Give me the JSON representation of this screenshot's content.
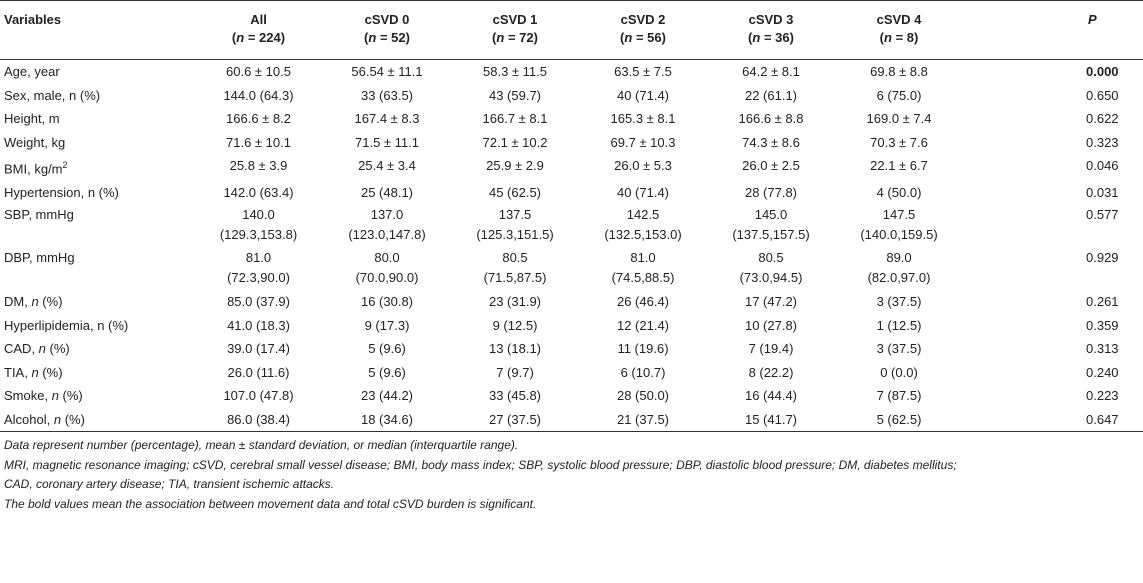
{
  "header": {
    "variables": "Variables",
    "groups": [
      {
        "name": "All",
        "n": "(n = 224)"
      },
      {
        "name": "cSVD 0",
        "n": "(n = 52)"
      },
      {
        "name": "cSVD 1",
        "n": "(n = 72)"
      },
      {
        "name": "cSVD 2",
        "n": "(n = 56)"
      },
      {
        "name": "cSVD 3",
        "n": "(n = 36)"
      },
      {
        "name": "cSVD 4",
        "n": "(n = 8)"
      }
    ],
    "p": "P"
  },
  "rows": [
    {
      "label": "Age, year",
      "cells": [
        "60.6 ± 10.5",
        "56.54 ± 11.1",
        "58.3 ± 11.5",
        "63.5 ± 7.5",
        "64.2 ± 8.1",
        "69.8 ± 8.8"
      ],
      "p": "0.000"
    },
    {
      "label": "Sex, male, n (%)",
      "cells": [
        "144.0 (64.3)",
        "33 (63.5)",
        "43 (59.7)",
        "40 (71.4)",
        "22 (61.1)",
        "6 (75.0)"
      ],
      "p": "0.650"
    },
    {
      "label": "Height, m",
      "cells": [
        "166.6 ± 8.2",
        "167.4 ± 8.3",
        "166.7 ± 8.1",
        "165.3 ± 8.1",
        "166.6 ± 8.8",
        "169.0 ± 7.4"
      ],
      "p": "0.622"
    },
    {
      "label": "Weight, kg",
      "cells": [
        "71.6 ± 10.1",
        "71.5 ± 11.1",
        "72.1 ± 10.2",
        "69.7 ± 10.3",
        "74.3 ± 8.6",
        "70.3 ± 7.6"
      ],
      "p": "0.323"
    },
    {
      "label_base": "BMI, kg/m",
      "label_sup": "2",
      "cells": [
        "25.8 ± 3.9",
        "25.4 ± 3.4",
        "25.9 ± 2.9",
        "26.0 ± 5.3",
        "26.0 ± 2.5",
        "22.1 ± 6.7"
      ],
      "p": "0.046"
    },
    {
      "label": "Hypertension, n (%)",
      "cells": [
        "142.0 (63.4)",
        "25 (48.1)",
        "45 (62.5)",
        "40 (71.4)",
        "28 (77.8)",
        "4 (50.0)"
      ],
      "p": "0.031"
    },
    {
      "label": "SBP, mmHg",
      "cells": [
        [
          "140.0",
          "(129.3,153.8)"
        ],
        [
          "137.0",
          "(123.0,147.8)"
        ],
        [
          "137.5",
          "(125.3,151.5)"
        ],
        [
          "142.5",
          "(132.5,153.0)"
        ],
        [
          "145.0",
          "(137.5,157.5)"
        ],
        [
          "147.5",
          "(140.0,159.5)"
        ]
      ],
      "p": "0.577"
    },
    {
      "label": "DBP, mmHg",
      "cells": [
        [
          "81.0",
          "(72.3,90.0)"
        ],
        [
          "80.0",
          "(70.0,90.0)"
        ],
        [
          "80.5",
          "(71.5,87.5)"
        ],
        [
          "81.0",
          "(74.5,88.5)"
        ],
        [
          "80.5",
          "(73.0,94.5)"
        ],
        [
          "89.0",
          "(82.0,97.0)"
        ]
      ],
      "p": "0.929"
    },
    {
      "label_base": "DM, ",
      "label_it": "n",
      "label_tail": " (%)",
      "cells": [
        "85.0 (37.9)",
        "16 (30.8)",
        "23 (31.9)",
        "26 (46.4)",
        "17 (47.2)",
        "3 (37.5)"
      ],
      "p": "0.261"
    },
    {
      "label": "Hyperlipidemia, n (%)",
      "cells": [
        "41.0 (18.3)",
        "9 (17.3)",
        "9 (12.5)",
        "12 (21.4)",
        "10 (27.8)",
        "1 (12.5)"
      ],
      "p": "0.359"
    },
    {
      "label_base": "CAD, ",
      "label_it": "n",
      "label_tail": " (%)",
      "cells": [
        "39.0 (17.4)",
        "5 (9.6)",
        "13 (18.1)",
        "11 (19.6)",
        "7 (19.4)",
        "3 (37.5)"
      ],
      "p": "0.313"
    },
    {
      "label_base": "TIA, ",
      "label_it": "n",
      "label_tail": " (%)",
      "cells": [
        "26.0 (11.6)",
        "5 (9.6)",
        "7 (9.7)",
        "6 (10.7)",
        "8 (22.2)",
        "0 (0.0)"
      ],
      "p": "0.240"
    },
    {
      "label_base": "Smoke, ",
      "label_it": "n",
      "label_tail": " (%)",
      "cells": [
        "107.0 (47.8)",
        "23 (44.2)",
        "33 (45.8)",
        "28 (50.0)",
        "16 (44.4)",
        "7 (87.5)"
      ],
      "p": "0.223"
    },
    {
      "label_base": "Alcohol, ",
      "label_it": "n",
      "label_tail": " (%)",
      "cells": [
        "86.0 (38.4)",
        "18 (34.6)",
        "27 (37.5)",
        "21 (37.5)",
        "15 (41.7)",
        "5 (62.5)"
      ],
      "p": "0.647"
    }
  ],
  "notes": [
    "Data represent number (percentage), mean ± standard deviation, or median (interquartile range).",
    "MRI, magnetic resonance imaging; cSVD, cerebral small vessel disease; BMI, body mass index; SBP, systolic blood pressure; DBP, diastolic blood pressure; DM, diabetes mellitus;",
    "CAD, coronary artery disease; TIA, transient ischemic attacks.",
    "The bold values mean the association between movement data and total cSVD burden is significant."
  ]
}
